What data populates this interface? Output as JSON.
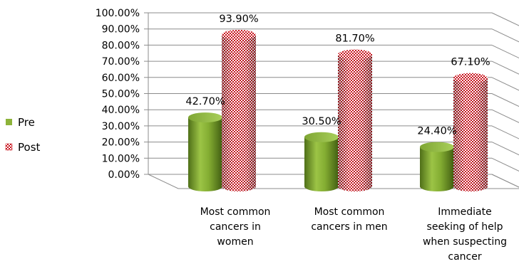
{
  "chart_data": {
    "type": "bar",
    "title": "",
    "xlabel": "",
    "ylabel": "",
    "ylim": [
      0,
      100
    ],
    "yticks": [
      "0.00%",
      "10.00%",
      "20.00%",
      "30.00%",
      "40.00%",
      "50.00%",
      "60.00%",
      "70.00%",
      "80.00%",
      "90.00%",
      "100.00%"
    ],
    "categories": [
      [
        "Most common",
        "cancers in",
        "women"
      ],
      [
        "Most common",
        "cancers in men"
      ],
      [
        "Immediate",
        "seeking of help",
        "when suspecting",
        "cancer"
      ]
    ],
    "series": [
      {
        "name": "Pre",
        "values": [
          42.7,
          30.5,
          24.4
        ],
        "labels": [
          "42.70%",
          "30.50%",
          "24.40%"
        ],
        "color": "#8db33a"
      },
      {
        "name": "Post",
        "values": [
          93.9,
          81.7,
          67.1
        ],
        "labels": [
          "93.90%",
          "81.70%",
          "67.10%"
        ],
        "color": "#c0141d"
      }
    ],
    "legend_position": "left",
    "grid": true,
    "style": "3d-cylinder"
  }
}
